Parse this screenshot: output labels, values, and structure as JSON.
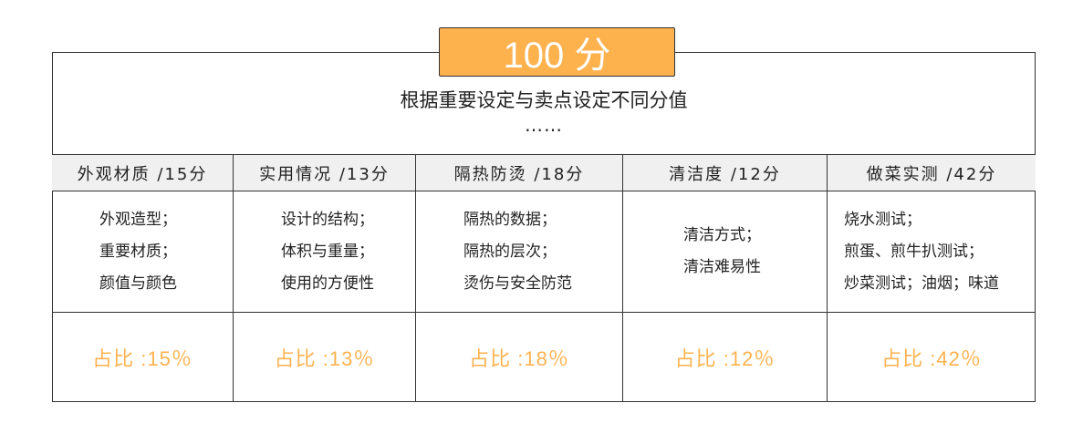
{
  "badge": "100 分",
  "subtitle": "根据重要设定与卖点设定不同分值",
  "ellipsis": "……",
  "accent_color": "#fdb24e",
  "columns": [
    {
      "header": "外观材质 /15分",
      "items": [
        "外观造型；",
        "重要材质；",
        "颜值与颜色"
      ],
      "ratio": "占比 :15％"
    },
    {
      "header": "实用情况 /13分",
      "items": [
        "设计的结构；",
        "体积与重量；",
        "使用的方便性"
      ],
      "ratio": "占比 :13％"
    },
    {
      "header": "隔热防烫  /18分",
      "items": [
        "隔热的数据；",
        "隔热的层次；",
        "烫伤与安全防范"
      ],
      "ratio": "占比 :18％"
    },
    {
      "header": "清洁度  /12分",
      "items": [
        "清洁方式；",
        "清洁难易性"
      ],
      "ratio": "占比 :12％"
    },
    {
      "header": "做菜实测 /42分",
      "items": [
        "烧水测试；",
        "煎蛋、煎牛扒测试；",
        "炒菜测试；油烟；味道"
      ],
      "ratio": "占比 :42％"
    }
  ]
}
